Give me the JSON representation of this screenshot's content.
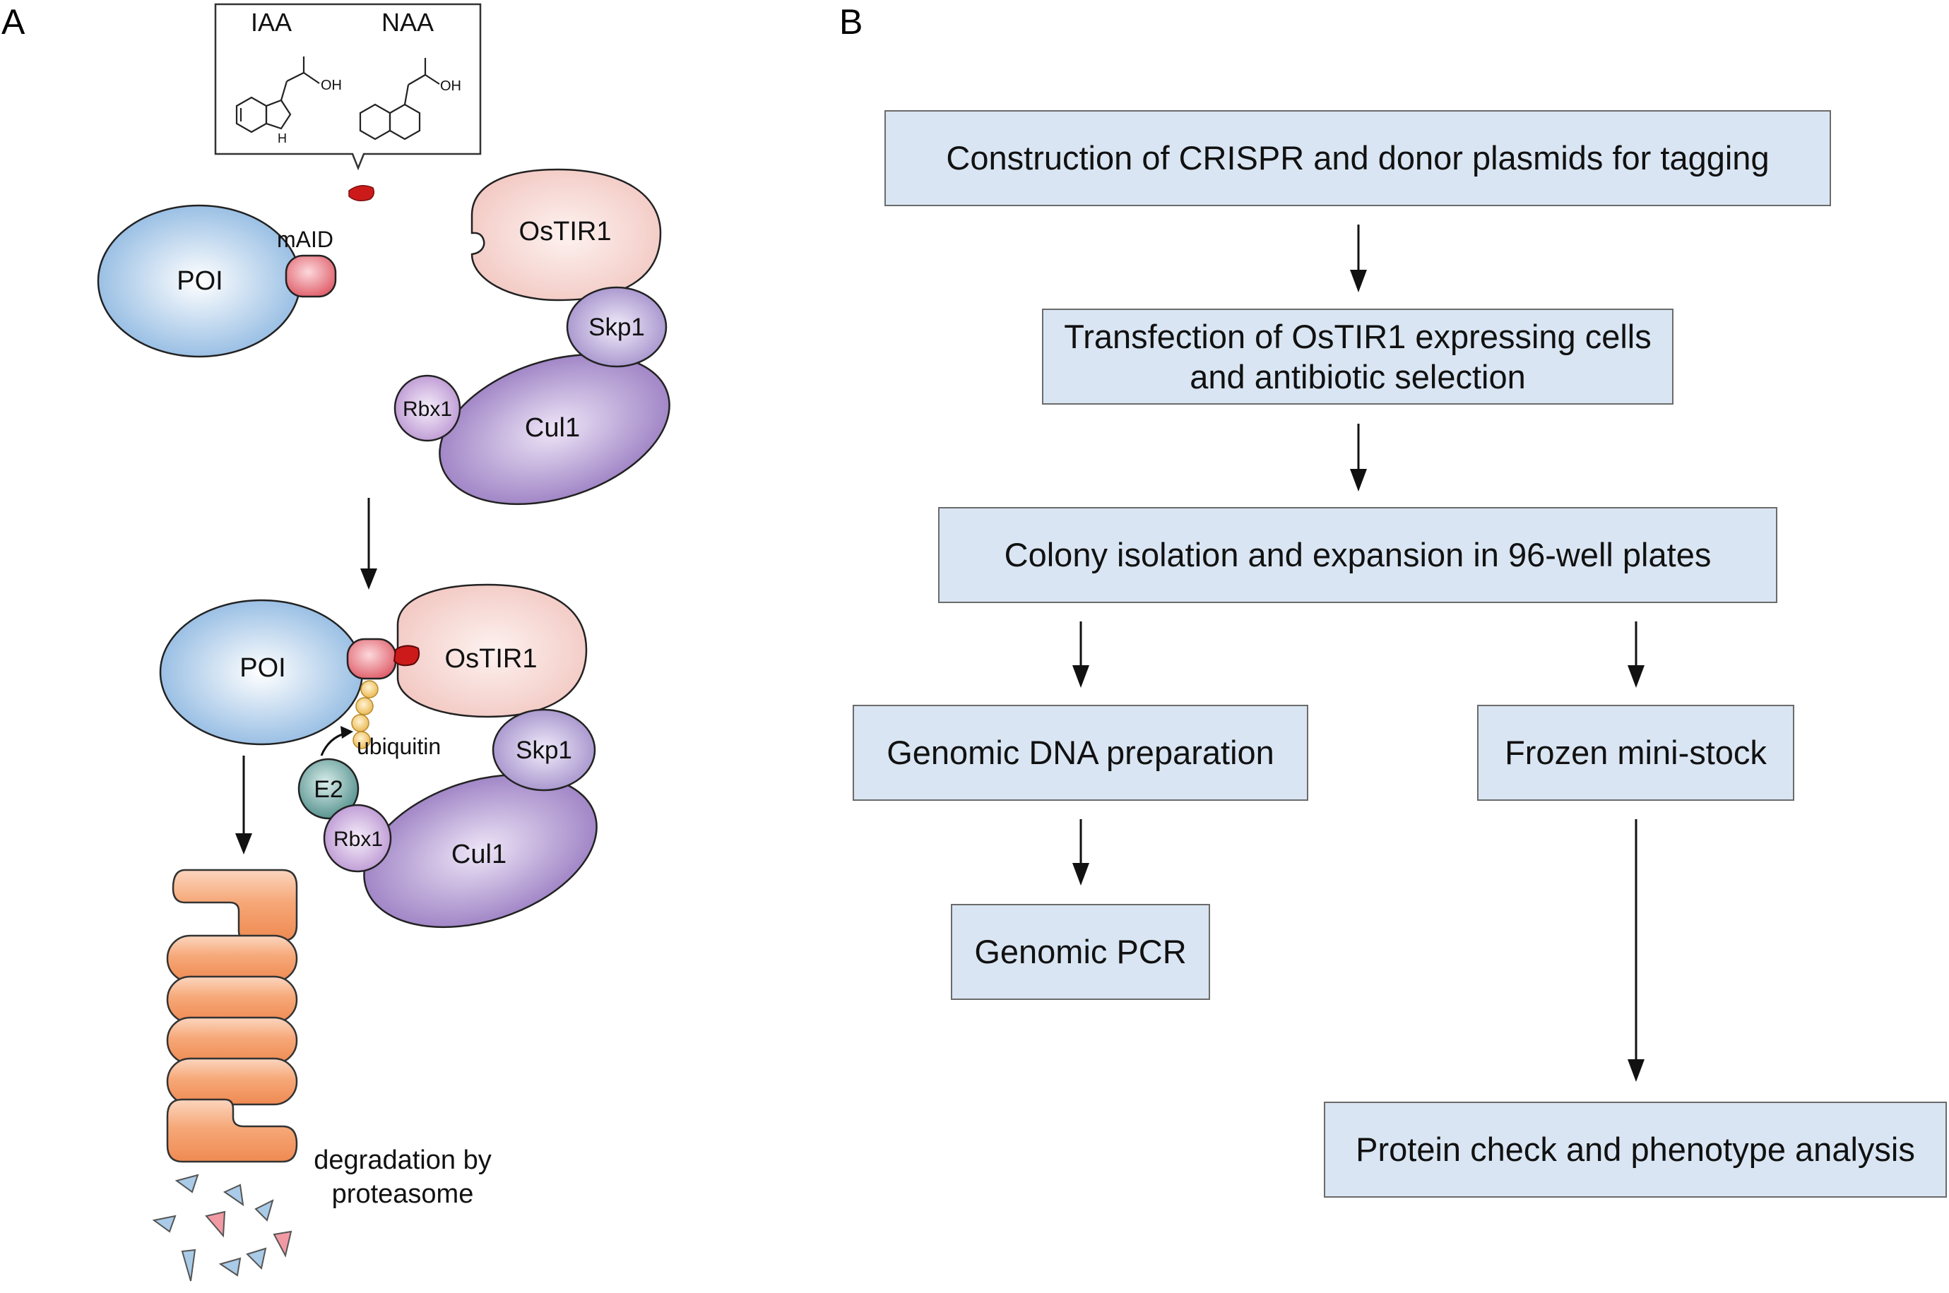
{
  "panels": {
    "a": "A",
    "b": "B"
  },
  "panel_a": {
    "ligands": {
      "iaa": "IAA",
      "naa": "NAA",
      "oh": "OH",
      "nh": "H"
    },
    "maid": "mAID",
    "poi": "POI",
    "ostir1": "OsTIR1",
    "skp1": "Skp1",
    "rbx1": "Rbx1",
    "cul1": "Cul1",
    "e2": "E2",
    "ubiquitin": "ubiquitin",
    "degradation": [
      "degradation by",
      "proteasome"
    ]
  },
  "panel_b": {
    "steps": {
      "construction": "Construction of CRISPR and donor plasmids for tagging",
      "transfection": "Transfection of OsTIR1 expressing cells\nand antibiotic selection",
      "colony": "Colony isolation and expansion in 96-well plates",
      "genomic_dna": "Genomic DNA preparation",
      "frozen": "Frozen mini-stock",
      "genomic_pcr": "Genomic PCR",
      "protein_check": "Protein check and phenotype analysis"
    }
  },
  "colors": {
    "poi": "#a9cbe8",
    "maid": "#e0606a",
    "ostir1": "#f6d5d0",
    "skp1": "#b7a8d8",
    "cul1": "#a88cc9",
    "rbx1": "#c9a7d8",
    "e2": "#5e9a96",
    "ubiquitin": "#f2c35e",
    "proteasome": "#f2935e",
    "auxin": "#cc1a1a",
    "flow_box": "#d9e5f2"
  }
}
